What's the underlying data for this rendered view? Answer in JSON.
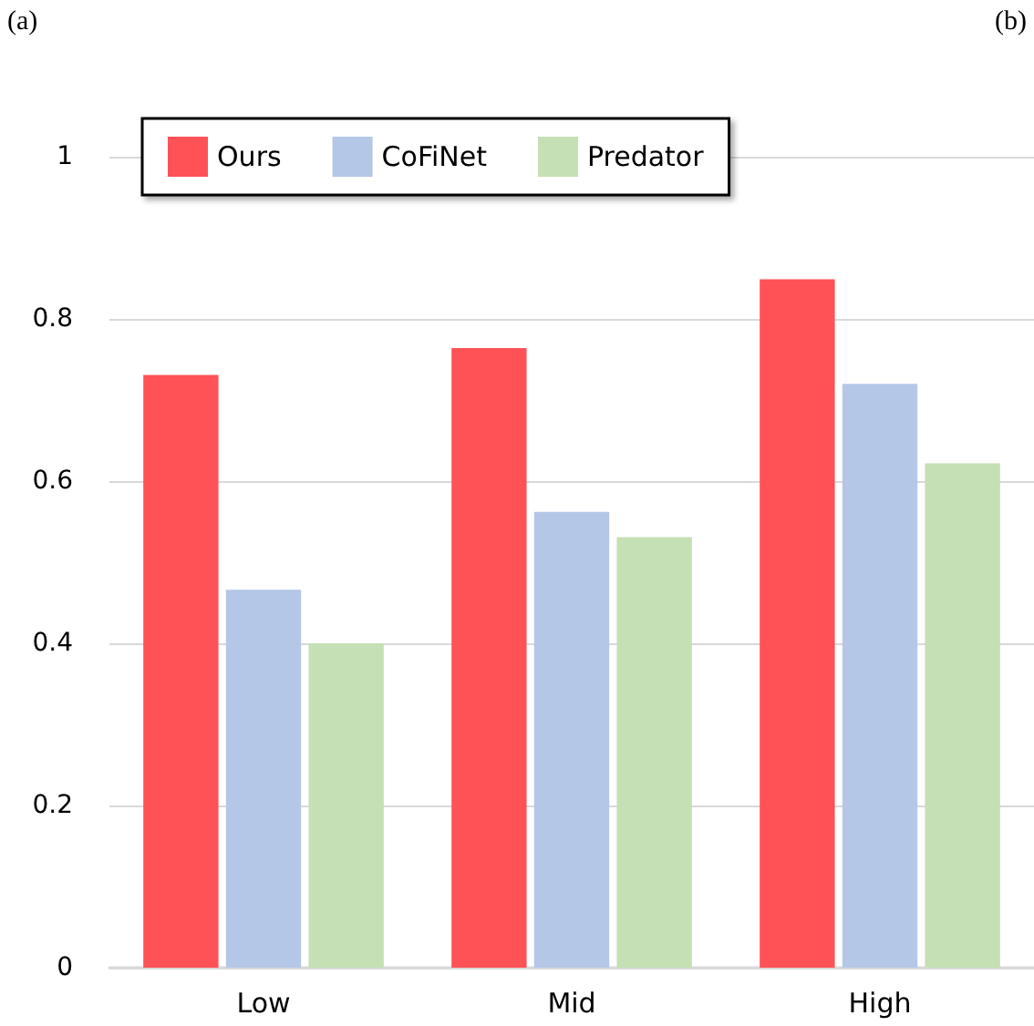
{
  "chart_data": {
    "type": "bar",
    "categories": [
      "Low",
      "Mid",
      "High"
    ],
    "series": [
      {
        "name": "Ours",
        "color": "#fe5257",
        "values": [
          0.731,
          0.764,
          0.849
        ]
      },
      {
        "name": "CoFiNet",
        "color": "#b4c7e7",
        "values": [
          0.466,
          0.562,
          0.72
        ]
      },
      {
        "name": "Predator",
        "color": "#c5e0b4",
        "values": [
          0.4,
          0.531,
          0.622
        ]
      }
    ],
    "ylim": [
      0,
      1
    ],
    "yticks": [
      0,
      0.2,
      0.4,
      0.6,
      0.8,
      1
    ],
    "grid": "y",
    "legend": "top left",
    "annotations": [
      "(a)",
      "(b)"
    ]
  }
}
